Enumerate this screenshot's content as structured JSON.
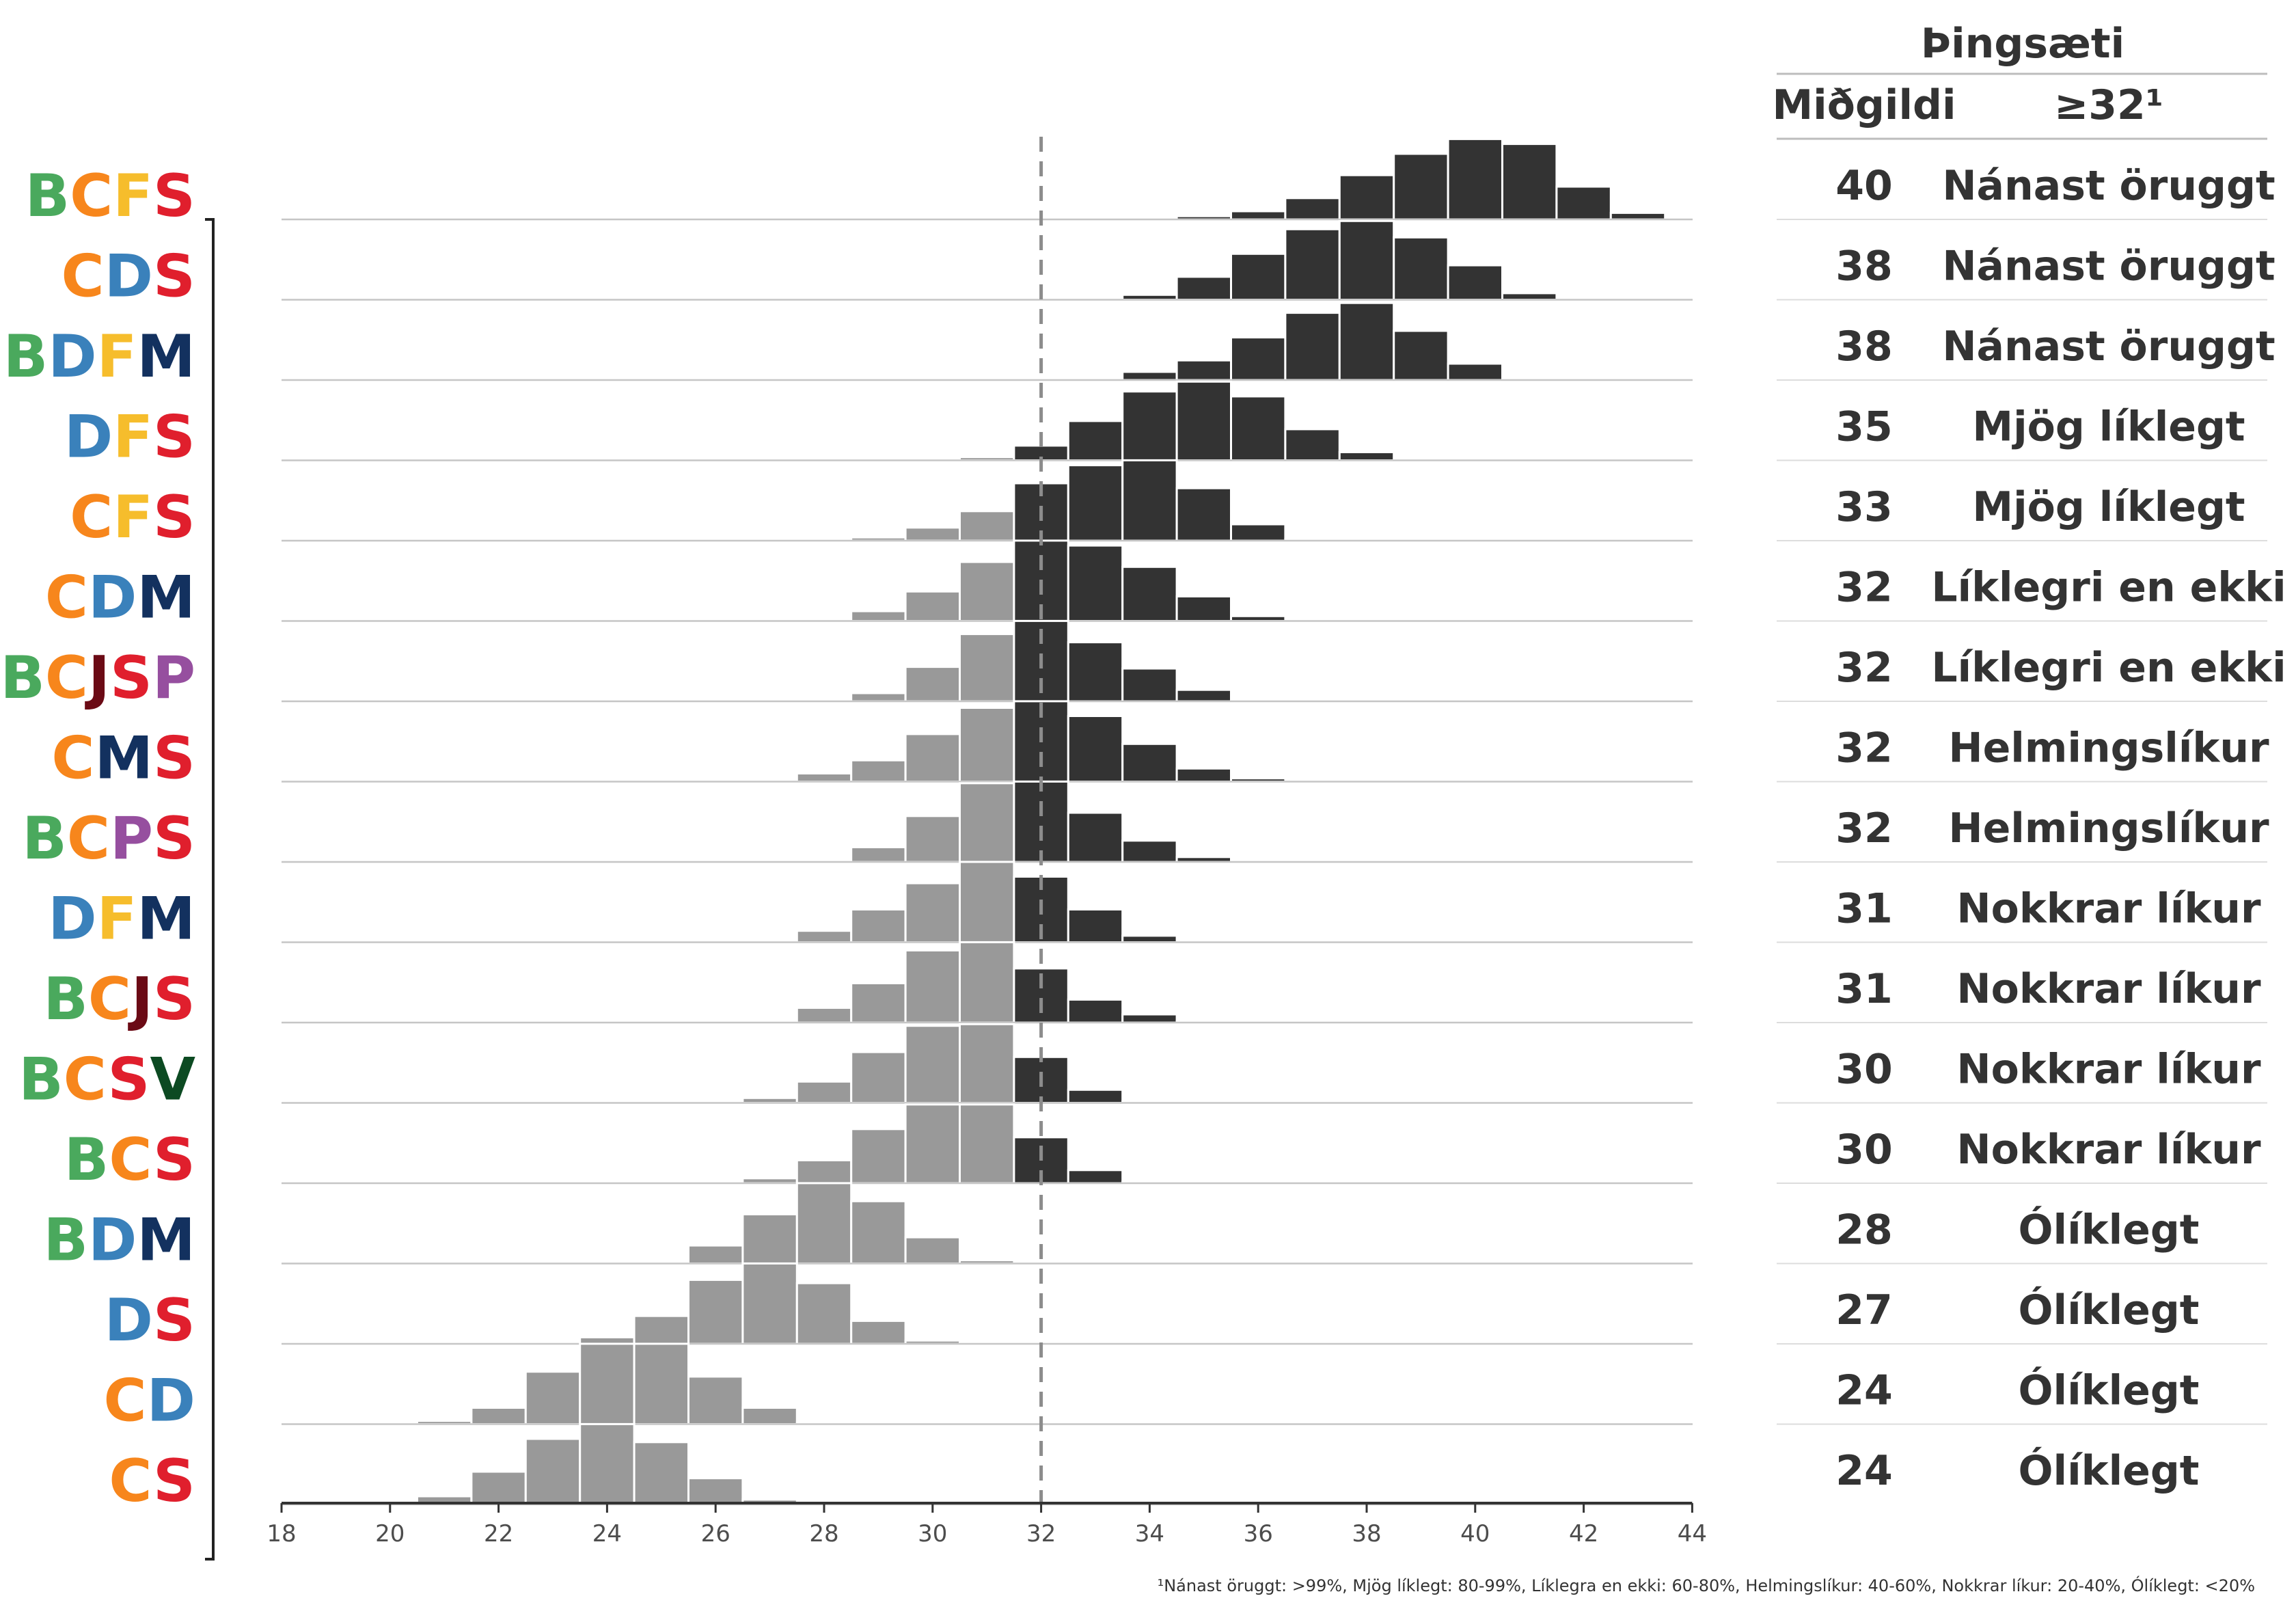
{
  "chart_data": {
    "type": "histogram",
    "threshold": 32,
    "xlim": [
      18,
      44
    ],
    "x_ticks": [
      "18",
      "20",
      "22",
      "24",
      "26",
      "28",
      "30",
      "32",
      "34",
      "36",
      "38",
      "40",
      "42",
      "44"
    ],
    "table": {
      "title": "Þingsæti",
      "col_median": "Miðgildi",
      "col_prob": "≥32¹"
    },
    "footnote": "¹Nánast öruggt: >99%, Mjög líklegt: 80-99%, Líklegra en ekki: 60-80%, Helmingslíkur: 40-60%, Nokkrar líkur: 20-40%, Ólíklegt: <20%",
    "party_colors": {
      "B": "#4aa95d",
      "C": "#f7861c",
      "D": "#3a81bb",
      "F": "#f6bd2c",
      "S": "#e01f2d",
      "M": "#13315f",
      "J": "#6b0a15",
      "P": "#964f9f",
      "V": "#0c4a22"
    },
    "bar_colors": {
      "below": "#999999",
      "above": "#333333"
    },
    "rows": [
      {
        "name": "BCFS",
        "median": "40",
        "prob": "Nánast öruggt",
        "bins": [
          [
            35,
            0.02
          ],
          [
            36,
            0.05
          ],
          [
            37,
            0.13
          ],
          [
            38,
            0.27
          ],
          [
            39,
            0.4
          ],
          [
            40,
            0.49
          ],
          [
            41,
            0.46
          ],
          [
            42,
            0.2
          ],
          [
            43,
            0.04
          ]
        ]
      },
      {
        "name": "CDS",
        "median": "38",
        "prob": "Nánast öruggt",
        "bins": [
          [
            34,
            0.03
          ],
          [
            35,
            0.14
          ],
          [
            36,
            0.28
          ],
          [
            37,
            0.43
          ],
          [
            38,
            0.48
          ],
          [
            39,
            0.38
          ],
          [
            40,
            0.21
          ],
          [
            41,
            0.04
          ]
        ]
      },
      {
        "name": "BDFM",
        "median": "38",
        "prob": "Nánast öruggt",
        "bins": [
          [
            34,
            0.05
          ],
          [
            35,
            0.12
          ],
          [
            36,
            0.26
          ],
          [
            37,
            0.41
          ],
          [
            38,
            0.47
          ],
          [
            39,
            0.3
          ],
          [
            40,
            0.1
          ],
          [
            41,
            0.01
          ]
        ]
      },
      {
        "name": "DFS",
        "median": "35",
        "prob": "Mjög líklegt",
        "bins": [
          [
            31,
            0.02
          ],
          [
            32,
            0.09
          ],
          [
            33,
            0.24
          ],
          [
            34,
            0.42
          ],
          [
            35,
            0.48
          ],
          [
            36,
            0.39
          ],
          [
            37,
            0.19
          ],
          [
            38,
            0.05
          ]
        ]
      },
      {
        "name": "CFS",
        "median": "33",
        "prob": "Mjög líklegt",
        "bins": [
          [
            29,
            0.02
          ],
          [
            30,
            0.08
          ],
          [
            31,
            0.18
          ],
          [
            32,
            0.35
          ],
          [
            33,
            0.46
          ],
          [
            34,
            0.49
          ],
          [
            35,
            0.32
          ],
          [
            36,
            0.1
          ],
          [
            37,
            0.01
          ]
        ]
      },
      {
        "name": "CDM",
        "median": "32",
        "prob": "Líklegri en ekki",
        "bins": [
          [
            28,
            0.01
          ],
          [
            29,
            0.06
          ],
          [
            30,
            0.18
          ],
          [
            31,
            0.36
          ],
          [
            32,
            0.49
          ],
          [
            33,
            0.46
          ],
          [
            34,
            0.33
          ],
          [
            35,
            0.15
          ],
          [
            36,
            0.03
          ]
        ]
      },
      {
        "name": "BCJSP",
        "median": "32",
        "prob": "Líklegri en ekki",
        "bins": [
          [
            29,
            0.05
          ],
          [
            30,
            0.21
          ],
          [
            31,
            0.41
          ],
          [
            32,
            0.49
          ],
          [
            33,
            0.36
          ],
          [
            34,
            0.2
          ],
          [
            35,
            0.07
          ],
          [
            36,
            0.01
          ]
        ]
      },
      {
        "name": "CMS",
        "median": "32",
        "prob": "Helmingslíkur",
        "bins": [
          [
            28,
            0.05
          ],
          [
            29,
            0.13
          ],
          [
            30,
            0.29
          ],
          [
            31,
            0.45
          ],
          [
            32,
            0.49
          ],
          [
            33,
            0.4
          ],
          [
            34,
            0.23
          ],
          [
            35,
            0.08
          ],
          [
            36,
            0.02
          ]
        ]
      },
      {
        "name": "BCPS",
        "median": "32",
        "prob": "Helmingslíkur",
        "bins": [
          [
            28,
            0.01
          ],
          [
            29,
            0.09
          ],
          [
            30,
            0.28
          ],
          [
            31,
            0.48
          ],
          [
            32,
            0.49
          ],
          [
            33,
            0.3
          ],
          [
            34,
            0.13
          ],
          [
            35,
            0.03
          ]
        ]
      },
      {
        "name": "DFM",
        "median": "31",
        "prob": "Nokkrar líkur",
        "bins": [
          [
            27,
            0.01
          ],
          [
            28,
            0.07
          ],
          [
            29,
            0.2
          ],
          [
            30,
            0.36
          ],
          [
            31,
            0.49
          ],
          [
            32,
            0.4
          ],
          [
            33,
            0.2
          ],
          [
            34,
            0.04
          ]
        ]
      },
      {
        "name": "BCJS",
        "median": "31",
        "prob": "Nokkrar líkur",
        "bins": [
          [
            27,
            0.01
          ],
          [
            28,
            0.09
          ],
          [
            29,
            0.24
          ],
          [
            30,
            0.44
          ],
          [
            31,
            0.49
          ],
          [
            32,
            0.33
          ],
          [
            33,
            0.14
          ],
          [
            34,
            0.05
          ],
          [
            35,
            0.01
          ]
        ]
      },
      {
        "name": "BCSV",
        "median": "30",
        "prob": "Nokkrar líkur",
        "bins": [
          [
            27,
            0.03
          ],
          [
            28,
            0.13
          ],
          [
            29,
            0.31
          ],
          [
            30,
            0.47
          ],
          [
            31,
            0.48
          ],
          [
            32,
            0.28
          ],
          [
            33,
            0.08
          ],
          [
            34,
            0.01
          ]
        ]
      },
      {
        "name": "BCS",
        "median": "30",
        "prob": "Nokkrar líkur",
        "bins": [
          [
            27,
            0.03
          ],
          [
            28,
            0.14
          ],
          [
            29,
            0.33
          ],
          [
            30,
            0.48
          ],
          [
            31,
            0.48
          ],
          [
            32,
            0.28
          ],
          [
            33,
            0.08
          ],
          [
            34,
            0.01
          ]
        ]
      },
      {
        "name": "BDM",
        "median": "28",
        "prob": "Ólíklegt",
        "bins": [
          [
            25,
            0.01
          ],
          [
            26,
            0.11
          ],
          [
            27,
            0.3
          ],
          [
            28,
            0.49
          ],
          [
            29,
            0.38
          ],
          [
            30,
            0.16
          ],
          [
            31,
            0.02
          ]
        ]
      },
      {
        "name": "DS",
        "median": "27",
        "prob": "Ólíklegt",
        "bins": [
          [
            24,
            0.04
          ],
          [
            25,
            0.17
          ],
          [
            26,
            0.39
          ],
          [
            27,
            0.49
          ],
          [
            28,
            0.37
          ],
          [
            29,
            0.14
          ],
          [
            30,
            0.02
          ]
        ]
      },
      {
        "name": "CD",
        "median": "24",
        "prob": "Ólíklegt",
        "bins": [
          [
            21,
            0.02
          ],
          [
            22,
            0.1
          ],
          [
            23,
            0.32
          ],
          [
            24,
            0.49
          ],
          [
            25,
            0.49
          ],
          [
            26,
            0.29
          ],
          [
            27,
            0.1
          ],
          [
            28,
            0.01
          ]
        ]
      },
      {
        "name": "CS",
        "median": "24",
        "prob": "Ólíklegt",
        "bins": [
          [
            21,
            0.05
          ],
          [
            22,
            0.2
          ],
          [
            23,
            0.4
          ],
          [
            24,
            0.49
          ],
          [
            25,
            0.38
          ],
          [
            26,
            0.16
          ],
          [
            27,
            0.03
          ]
        ]
      }
    ]
  }
}
